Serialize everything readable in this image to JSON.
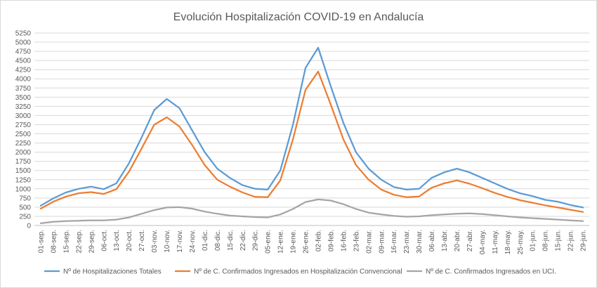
{
  "chart_data": {
    "type": "line",
    "title": "Evolución Hospitalización COVID-19 en Andalucía",
    "xlabel": "",
    "ylabel": "",
    "ylim": [
      0,
      5250
    ],
    "grid": true,
    "legend_position": "bottom",
    "yticks": [
      0,
      250,
      500,
      750,
      1000,
      1250,
      1500,
      1750,
      2000,
      2250,
      2500,
      2750,
      3000,
      3250,
      3500,
      3750,
      4000,
      4250,
      4500,
      4750,
      5000,
      5250
    ],
    "categories": [
      "01-sep.",
      "08-sep.",
      "15-sep.",
      "22-sep.",
      "29-sep.",
      "06-oct.",
      "13-oct.",
      "20-oct.",
      "27-oct.",
      "03-nov.",
      "10-nov.",
      "17-nov.",
      "24-nov.",
      "01-dic.",
      "08-dic.",
      "15-dic.",
      "22-dic.",
      "29-dic.",
      "05-ene.",
      "12-ene.",
      "19-ene.",
      "26-ene.",
      "02-feb.",
      "09-feb.",
      "16-feb.",
      "23-feb.",
      "02-mar.",
      "09-mar.",
      "16-mar.",
      "23-mar.",
      "30-mar.",
      "06-abr.",
      "13-abr.",
      "20-abr.",
      "27-abr.",
      "04-may.",
      "11-may.",
      "18-may.",
      "25-may.",
      "01-jun.",
      "08-jun.",
      "15-jun.",
      "22-jun.",
      "29-jun."
    ],
    "series": [
      {
        "name": "Nº de Hospitalizaciones Totales",
        "color": "#5b9bd5",
        "values": [
          540,
          740,
          900,
          1000,
          1060,
          990,
          1150,
          1700,
          2400,
          3150,
          3450,
          3200,
          2600,
          2000,
          1550,
          1300,
          1100,
          1000,
          980,
          1500,
          2750,
          4300,
          4850,
          3800,
          2800,
          2000,
          1550,
          1250,
          1050,
          980,
          1000,
          1300,
          1450,
          1550,
          1450,
          1300,
          1150,
          1000,
          880,
          800,
          700,
          650,
          560,
          490
        ]
      },
      {
        "name": "Nº de C. Confirmados Ingresados en Hospitalización Convencional",
        "color": "#ed7d31",
        "values": [
          460,
          650,
          790,
          880,
          910,
          860,
          990,
          1470,
          2100,
          2750,
          2950,
          2700,
          2200,
          1650,
          1250,
          1060,
          900,
          780,
          770,
          1230,
          2350,
          3700,
          4200,
          3300,
          2350,
          1650,
          1250,
          980,
          840,
          770,
          790,
          1030,
          1150,
          1230,
          1140,
          1020,
          890,
          780,
          690,
          620,
          550,
          490,
          430,
          370
        ]
      },
      {
        "name": "Nº de C. Confirmados Ingresados en UCI.",
        "color": "#a5a5a5",
        "values": [
          60,
          100,
          120,
          130,
          140,
          140,
          160,
          220,
          320,
          420,
          490,
          500,
          460,
          380,
          320,
          270,
          250,
          230,
          220,
          300,
          450,
          640,
          710,
          680,
          580,
          450,
          350,
          300,
          260,
          240,
          250,
          280,
          300,
          320,
          330,
          310,
          280,
          250,
          220,
          200,
          180,
          160,
          140,
          120
        ]
      }
    ]
  }
}
